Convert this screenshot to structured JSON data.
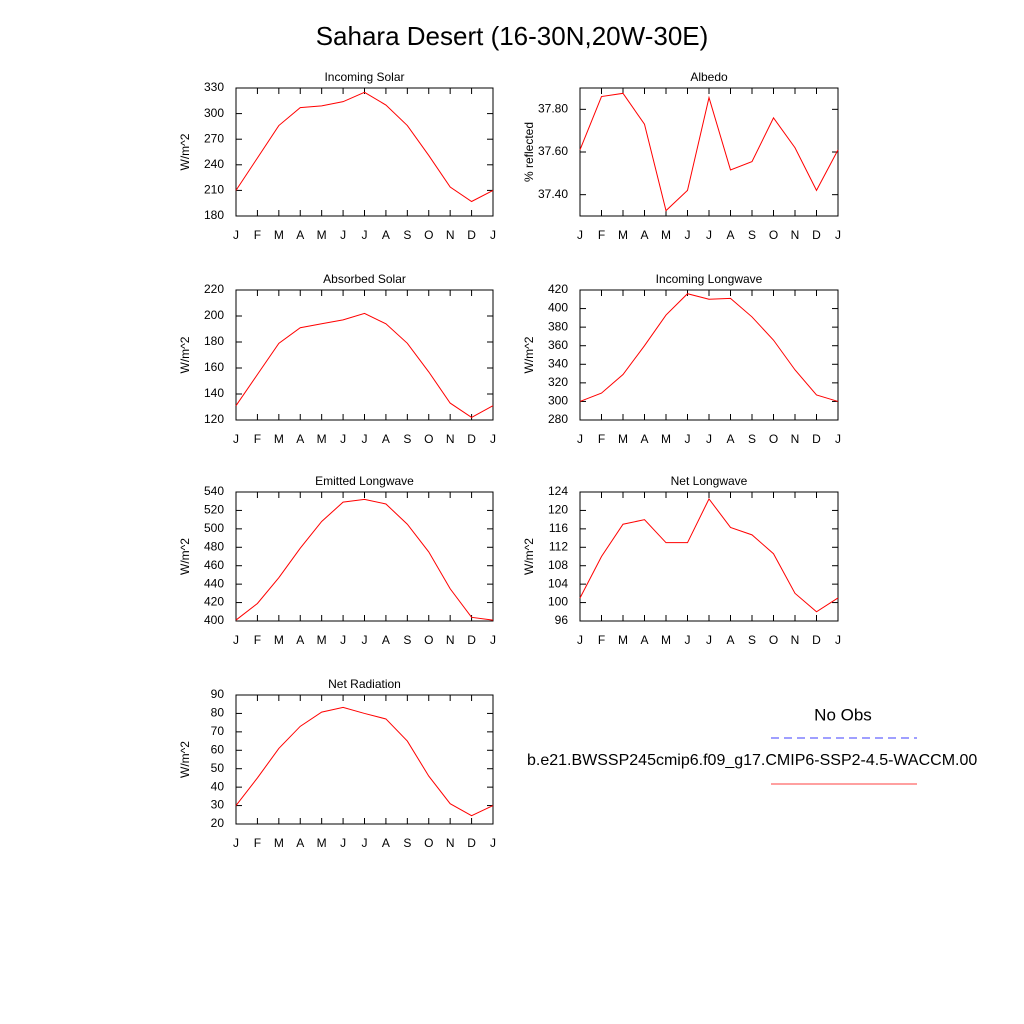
{
  "title": "Sahara Desert (16-30N,20W-30E)",
  "legend": [
    {
      "name": "No Obs",
      "color": "#0000ff",
      "dash": true
    },
    {
      "name": "b.e21.BWSSP245cmip6.f09_g17.CMIP6-SSP2-4.5-WACCM.00",
      "color": "#ff0000",
      "dash": false
    }
  ],
  "chart_data": [
    {
      "type": "line",
      "title": "Incoming Solar",
      "ylabel": "W/m^2",
      "color": "#ff0000",
      "categories": [
        "J",
        "F",
        "M",
        "A",
        "M",
        "J",
        "J",
        "A",
        "S",
        "O",
        "N",
        "D",
        "J"
      ],
      "values": [
        210,
        248,
        286,
        307,
        309,
        314,
        325,
        310,
        286,
        251,
        214,
        197,
        210
      ],
      "ylim": [
        180,
        330
      ],
      "yticks": [
        180,
        210,
        240,
        270,
        300,
        330
      ]
    },
    {
      "type": "line",
      "title": "Albedo",
      "ylabel": "% reflected",
      "color": "#ff0000",
      "categories": [
        "J",
        "F",
        "M",
        "A",
        "M",
        "J",
        "J",
        "A",
        "S",
        "O",
        "N",
        "D",
        "J"
      ],
      "values": [
        37.61,
        37.86,
        37.875,
        37.73,
        37.325,
        37.42,
        37.855,
        37.516,
        37.555,
        37.76,
        37.62,
        37.42,
        37.61
      ],
      "ylim": [
        37.3,
        37.9
      ],
      "yticks": [
        {
          "value": 37.4,
          "label": "37.40"
        },
        {
          "value": 37.6,
          "label": "37.60"
        },
        {
          "value": 37.8,
          "label": "37.80"
        }
      ]
    },
    {
      "type": "line",
      "title": "Absorbed Solar",
      "ylabel": "W/m^2",
      "color": "#ff0000",
      "categories": [
        "J",
        "F",
        "M",
        "A",
        "M",
        "J",
        "J",
        "A",
        "S",
        "O",
        "N",
        "D",
        "J"
      ],
      "values": [
        131,
        155,
        179,
        191,
        194,
        197,
        202,
        194,
        179,
        157,
        133,
        122,
        131
      ],
      "ylim": [
        120,
        220
      ],
      "yticks": [
        120,
        140,
        160,
        180,
        200,
        220
      ]
    },
    {
      "type": "line",
      "title": "Incoming Longwave",
      "ylabel": "W/m^2",
      "color": "#ff0000",
      "categories": [
        "J",
        "F",
        "M",
        "A",
        "M",
        "J",
        "J",
        "A",
        "S",
        "O",
        "N",
        "D",
        "J"
      ],
      "values": [
        300,
        309,
        329,
        360,
        393,
        416,
        410,
        411,
        391,
        366,
        334,
        307,
        300
      ],
      "ylim": [
        280,
        420
      ],
      "yticks": [
        280,
        300,
        320,
        340,
        360,
        380,
        400,
        420
      ]
    },
    {
      "type": "line",
      "title": "Emitted Longwave",
      "ylabel": "W/m^2",
      "color": "#ff0000",
      "categories": [
        "J",
        "F",
        "M",
        "A",
        "M",
        "J",
        "J",
        "A",
        "S",
        "O",
        "N",
        "D",
        "J"
      ],
      "values": [
        401,
        419,
        447,
        479,
        508,
        529,
        532,
        527,
        505,
        475,
        435,
        404,
        401
      ],
      "ylim": [
        400,
        540
      ],
      "yticks": [
        400,
        420,
        440,
        460,
        480,
        500,
        520,
        540
      ]
    },
    {
      "type": "line",
      "title": "Net Longwave",
      "ylabel": "W/m^2",
      "color": "#ff0000",
      "categories": [
        "J",
        "F",
        "M",
        "A",
        "M",
        "J",
        "J",
        "A",
        "S",
        "O",
        "N",
        "D",
        "J"
      ],
      "values": [
        101,
        110,
        117,
        118,
        113,
        113,
        122.5,
        116.3,
        114.7,
        110.6,
        102,
        98,
        101
      ],
      "ylim": [
        96,
        124
      ],
      "yticks": [
        96,
        100,
        104,
        108,
        112,
        116,
        120,
        124
      ]
    },
    {
      "type": "line",
      "title": "Net Radiation",
      "ylabel": "W/m^2",
      "color": "#ff0000",
      "categories": [
        "J",
        "F",
        "M",
        "A",
        "M",
        "J",
        "J",
        "A",
        "S",
        "O",
        "N",
        "D",
        "J"
      ],
      "values": [
        30,
        45,
        61,
        73,
        80.7,
        83.3,
        80,
        77,
        65,
        46,
        31,
        24.5,
        30
      ],
      "ylim": [
        20,
        90
      ],
      "yticks": [
        20,
        30,
        40,
        50,
        60,
        70,
        80,
        90
      ]
    }
  ]
}
